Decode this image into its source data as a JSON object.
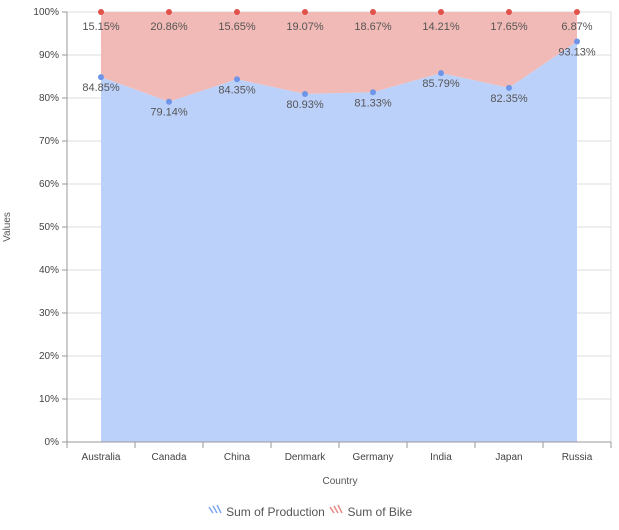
{
  "chart_data": {
    "type": "area",
    "stacking": "100%",
    "categories": [
      "Australia",
      "Canada",
      "China",
      "Denmark",
      "Germany",
      "India",
      "Japan",
      "Russia"
    ],
    "series": [
      {
        "name": "Sum of Production",
        "values": [
          84.85,
          79.14,
          84.35,
          80.93,
          81.33,
          85.79,
          82.35,
          93.13
        ],
        "color": "#b8cffa",
        "marker": "#6f95e8"
      },
      {
        "name": "Sum of Bike",
        "values": [
          15.15,
          20.86,
          15.65,
          19.07,
          18.67,
          14.21,
          17.65,
          6.87
        ],
        "color": "#f0b6b2",
        "marker": "#e0524a"
      }
    ],
    "xlabel": "Country",
    "ylabel": "Values",
    "ylim": [
      0,
      100
    ],
    "yticks": [
      "0%",
      "10%",
      "20%",
      "30%",
      "40%",
      "50%",
      "60%",
      "70%",
      "80%",
      "90%",
      "100%"
    ],
    "grid": true,
    "legend": "bottom"
  }
}
